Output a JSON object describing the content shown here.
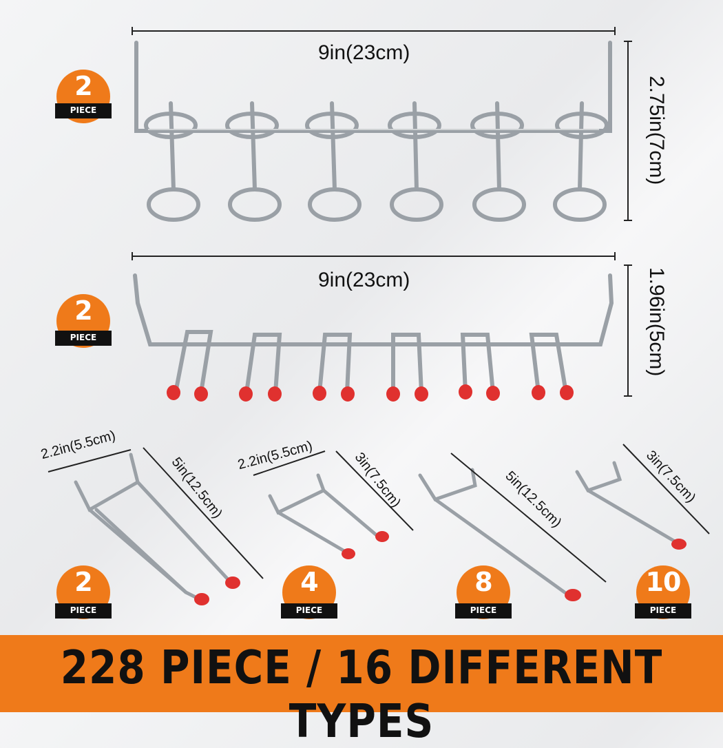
{
  "colors": {
    "accent": "#ef7a1a",
    "text": "#111111",
    "tip": "#e0312f",
    "metal": "#b9bdc2"
  },
  "products": [
    {
      "quantity": "2",
      "quantity_label": "PIECE",
      "width_label": "9in(23cm)",
      "height_label": "2.75in(7cm)"
    },
    {
      "quantity": "2",
      "quantity_label": "PIECE",
      "width_label": "9in(23cm)",
      "height_label": "1.96in(5cm)"
    },
    {
      "quantity": "2",
      "quantity_label": "PIECE",
      "width_label": "2.2in(5.5cm)",
      "length_label": "5in(12.5cm)"
    },
    {
      "quantity": "4",
      "quantity_label": "PIECE",
      "width_label": "2.2in(5.5cm)",
      "length_label": "3in(7.5cm)"
    },
    {
      "quantity": "8",
      "quantity_label": "PIECE",
      "length_label": "5in(12.5cm)"
    },
    {
      "quantity": "10",
      "quantity_label": "PIECE",
      "length_label": "3in(7.5cm)"
    }
  ],
  "banner": {
    "text": "228 PIECE / 16 DIFFERENT TYPES"
  }
}
